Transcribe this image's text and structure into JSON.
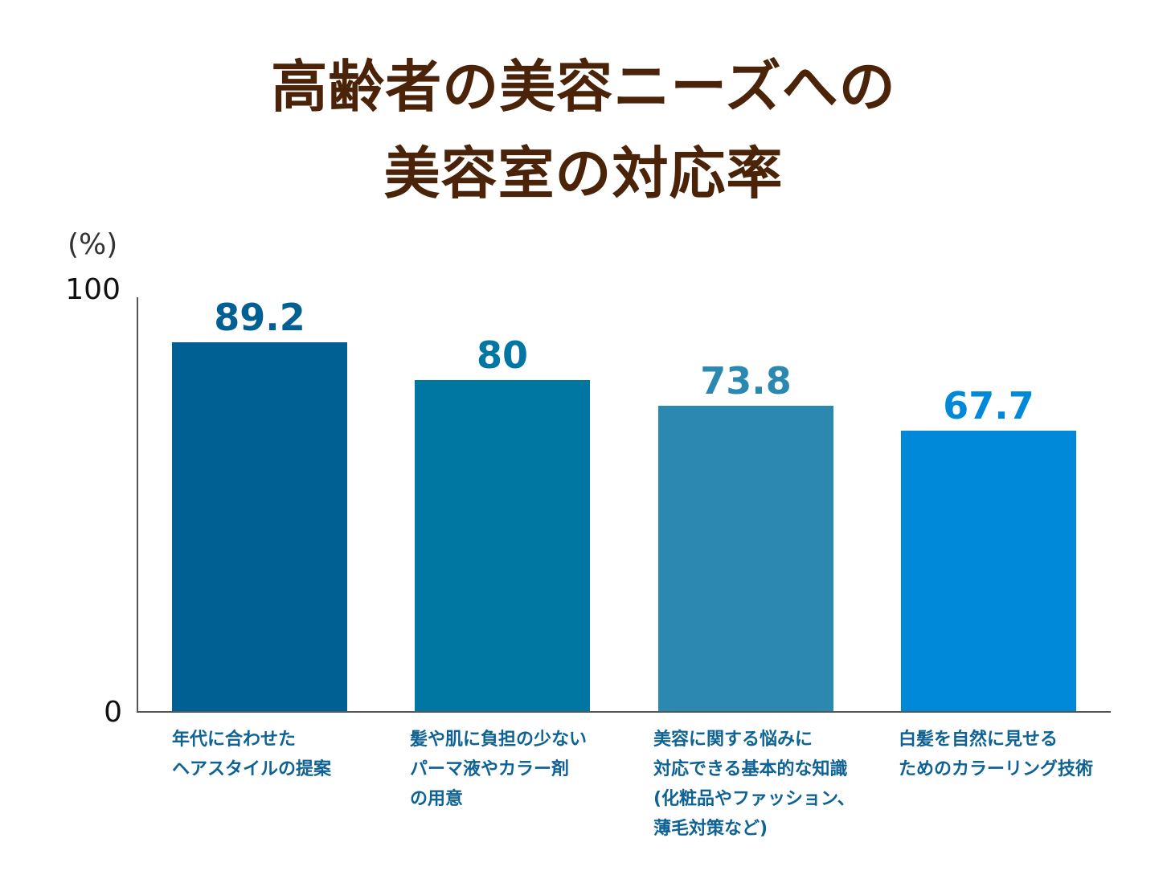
{
  "title_lines": [
    "高齢者の美容ニーズへの",
    "美容室の対応率"
  ],
  "chart_data": {
    "type": "bar",
    "title": "高齢者の美容ニーズへの美容室の対応率",
    "ylabel": "(%)",
    "ylim": [
      0,
      100
    ],
    "y_tick_labels": [
      "0",
      "100"
    ],
    "categories": [
      [
        "年代に合わせた",
        "ヘアスタイルの提案"
      ],
      [
        "髪や肌に負担の少ない",
        "パーマ液やカラー剤",
        "の用意"
      ],
      [
        "美容に関する悩みに",
        "対応できる基本的な知識",
        "(化粧品やファッション、",
        "薄毛対策など)"
      ],
      [
        "白髪を自然に見せる",
        "ためのカラーリング技術"
      ]
    ],
    "values": [
      89.2,
      80,
      73.8,
      67.7
    ],
    "value_labels": [
      "89.2",
      "80",
      "73.8",
      "67.7"
    ],
    "colors": [
      "#005f93",
      "#0076a3",
      "#2b88b0",
      "#0089d8"
    ]
  }
}
